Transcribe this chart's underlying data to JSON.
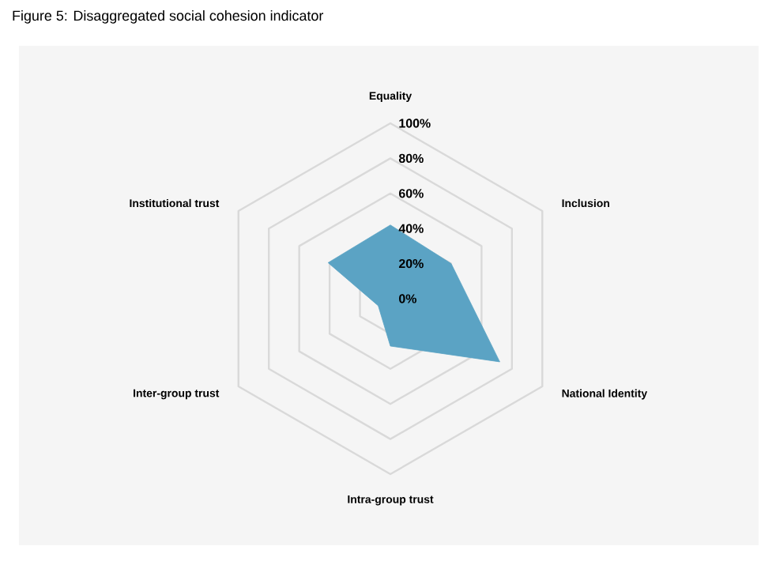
{
  "chart_data": {
    "type": "radar",
    "title": "Figure 5: Disaggregated social cohesion indicator",
    "categories": [
      "Equality",
      "Inclusion",
      "National Identity",
      "Intra-group trust",
      "Inter-group trust",
      "Institutional trust"
    ],
    "series": [
      {
        "color": "#5ba3c4",
        "values": [
          42,
          40,
          72,
          27,
          8,
          41
        ]
      }
    ],
    "ylim": [
      0,
      100
    ],
    "yticks": [
      {
        "value": 0,
        "label": "0%"
      },
      {
        "value": 20,
        "label": "20%"
      },
      {
        "value": 40,
        "label": "40%"
      },
      {
        "value": 60,
        "label": "60%"
      },
      {
        "value": 80,
        "label": "80%"
      },
      {
        "value": 100,
        "label": "100%"
      }
    ],
    "grid": true
  }
}
